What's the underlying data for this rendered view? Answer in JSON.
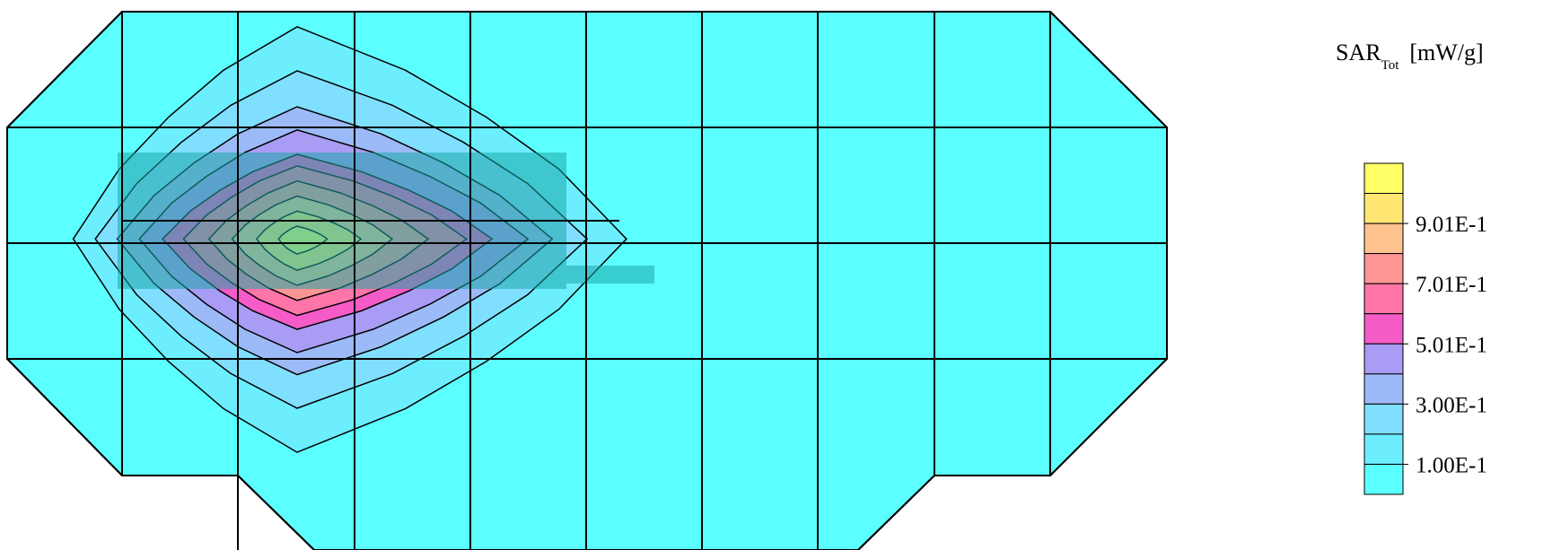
{
  "chart_data": {
    "type": "heatmap",
    "title": "",
    "quantity": {
      "symbol": "SAR",
      "subscript": "Tot",
      "unit": "[mW/g]"
    },
    "legend": {
      "placement": "right",
      "tick_labels": [
        "9.01E-1",
        "7.01E-1",
        "5.01E-1",
        "3.00E-1",
        "1.00E-1"
      ],
      "colors": [
        "#ffff66",
        "#ffe673",
        "#ffc38f",
        "#ff9696",
        "#ff75a8",
        "#f55cc8",
        "#a89cf5",
        "#9cbaf7",
        "#80deff",
        "#6ceeff",
        "#5cffff"
      ]
    },
    "grid": {
      "columns": 10,
      "rows": 4,
      "grid_lines": true
    },
    "contour_levels": [
      0.1,
      0.2,
      0.3,
      0.4,
      0.5,
      0.6,
      0.7,
      0.8,
      0.9,
      1.0
    ],
    "peak": {
      "column": 3,
      "row": 2,
      "value": 1.0
    },
    "region_colors": {
      "background": "#5cffff",
      "device_overlay": "#1aa8a8"
    }
  }
}
